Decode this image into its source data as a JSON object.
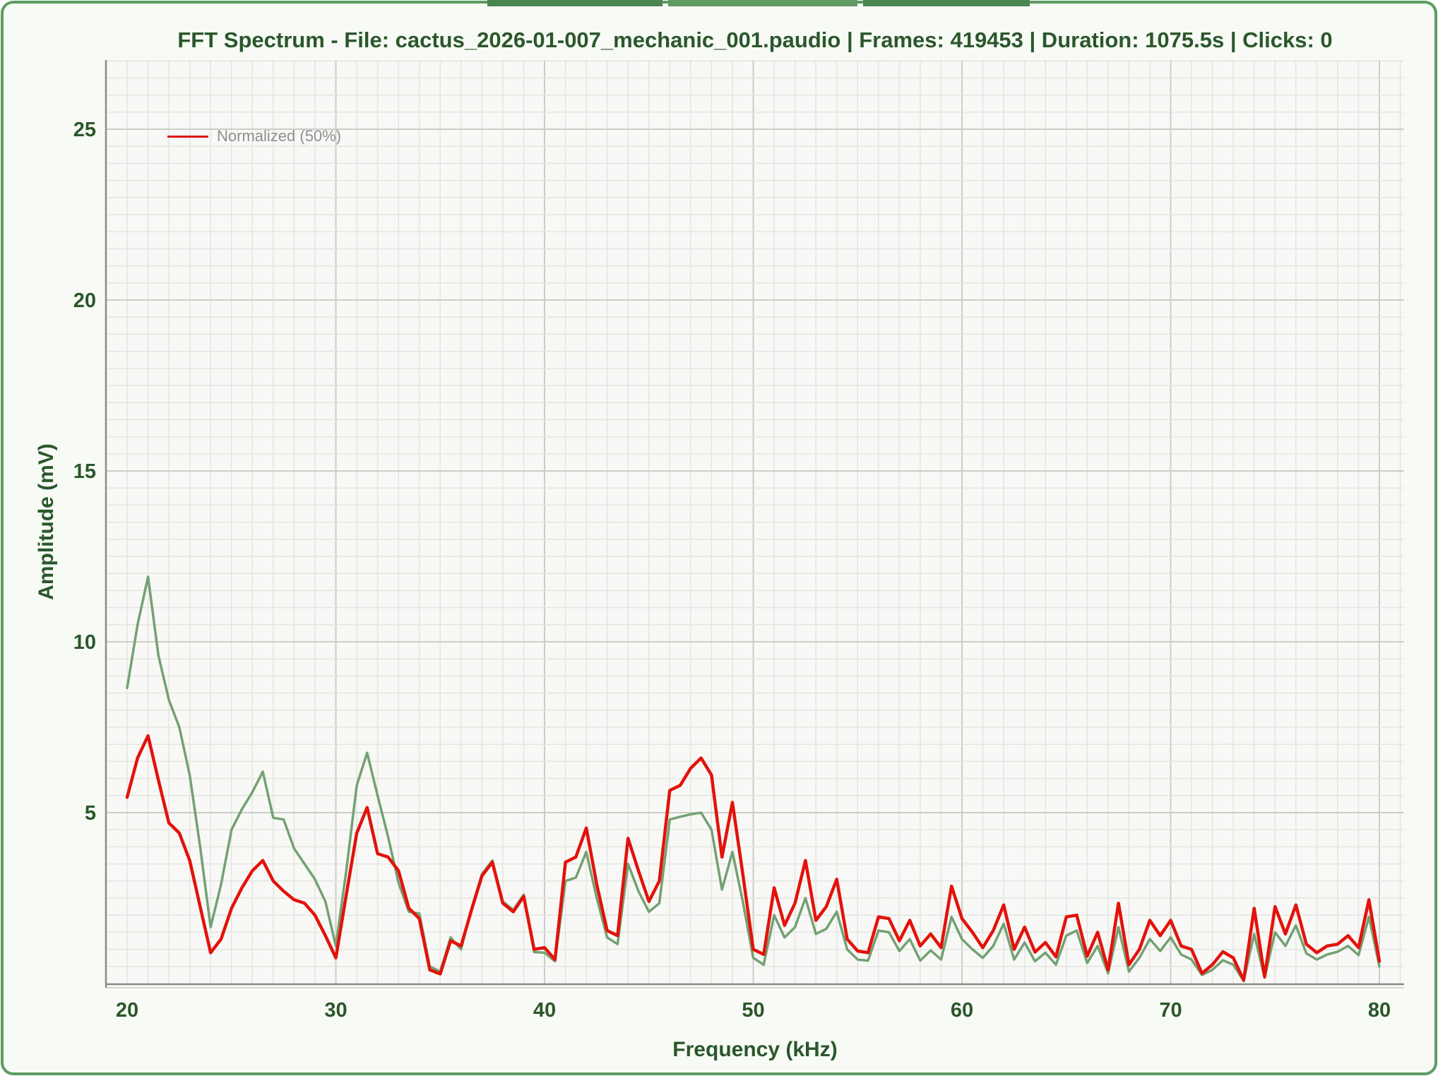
{
  "colors": {
    "page_bg": "#ffffff",
    "card_bg": "#f7faf5",
    "plot_bg": "#f8f9f6",
    "card_border": "#5c9c61",
    "accent_segment": "#4c8450",
    "accent_segment_mid": "#629a64",
    "title_text": "#2b572b",
    "grid_minor": "#e4e4e1",
    "grid_major": "#cccdc8",
    "axis_line": "#8a8a8a",
    "legend_text": "#8f8f8f",
    "series_red": "#e3120b",
    "series_green": "#74a173"
  },
  "chart_data": {
    "type": "line",
    "title": "FFT Spectrum - File: cactus_2026-01-007_mechanic_001.paudio | Frames: 419453 | Duration: 1075.5s | Clicks: 0",
    "xlabel": "Frequency (kHz)",
    "ylabel": "Amplitude (mV)",
    "x_ticks": [
      20,
      30,
      40,
      50,
      60,
      70,
      80
    ],
    "y_ticks": [
      5,
      10,
      15,
      20,
      25
    ],
    "xlim": [
      20,
      81.3
    ],
    "ylim": [
      0,
      27.05
    ],
    "x_minor_step": 1,
    "y_minor_step": 0.5,
    "grid": true,
    "legend_position": "top-left",
    "x_start": 20,
    "x_step": 0.5,
    "series": [
      {
        "name": "Normalized (50%)",
        "color": "#e3120b",
        "in_legend": true,
        "values": [
          5.45,
          6.6,
          7.25,
          5.95,
          4.7,
          4.4,
          3.6,
          2.25,
          0.9,
          1.3,
          2.2,
          2.8,
          3.3,
          3.6,
          3.0,
          2.7,
          2.45,
          2.35,
          2.0,
          1.4,
          0.75,
          2.6,
          4.4,
          5.15,
          3.8,
          3.7,
          3.3,
          2.2,
          1.9,
          0.4,
          0.28,
          1.25,
          1.1,
          2.15,
          3.15,
          3.55,
          2.35,
          2.1,
          2.55,
          1.0,
          1.05,
          0.7,
          3.55,
          3.7,
          4.55,
          2.9,
          1.55,
          1.4,
          4.25,
          3.3,
          2.4,
          3.0,
          5.65,
          5.8,
          6.3,
          6.6,
          6.1,
          3.7,
          5.3,
          3.2,
          1.0,
          0.85,
          2.8,
          1.7,
          2.35,
          3.6,
          1.85,
          2.25,
          3.05,
          1.3,
          0.95,
          0.9,
          1.95,
          1.9,
          1.25,
          1.85,
          1.1,
          1.45,
          1.05,
          2.85,
          1.9,
          1.5,
          1.05,
          1.55,
          2.3,
          1.0,
          1.65,
          0.92,
          1.2,
          0.78,
          1.95,
          2.0,
          0.8,
          1.5,
          0.4,
          2.35,
          0.55,
          1.0,
          1.85,
          1.4,
          1.85,
          1.1,
          1.0,
          0.3,
          0.55,
          0.93,
          0.75,
          0.1,
          2.2,
          0.2,
          2.25,
          1.45,
          2.3,
          1.15,
          0.9,
          1.1,
          1.15,
          1.4,
          1.05,
          2.45,
          0.65
        ]
      },
      {
        "name": "",
        "color": "#74a173",
        "in_legend": false,
        "values": [
          8.65,
          10.5,
          11.9,
          9.6,
          8.3,
          7.5,
          6.1,
          4.0,
          1.65,
          2.9,
          4.5,
          5.1,
          5.6,
          6.2,
          4.85,
          4.8,
          3.95,
          3.5,
          3.05,
          2.4,
          1.1,
          3.3,
          5.8,
          6.75,
          5.5,
          4.3,
          2.95,
          2.1,
          2.05,
          0.5,
          0.35,
          1.35,
          1.0,
          2.2,
          3.2,
          3.6,
          2.4,
          2.15,
          2.6,
          0.92,
          0.9,
          0.65,
          3.0,
          3.1,
          3.85,
          2.5,
          1.35,
          1.15,
          3.5,
          2.7,
          2.1,
          2.35,
          4.8,
          4.88,
          4.95,
          5.0,
          4.5,
          2.75,
          3.85,
          2.4,
          0.75,
          0.55,
          2.0,
          1.35,
          1.65,
          2.5,
          1.45,
          1.6,
          2.1,
          1.0,
          0.7,
          0.67,
          1.55,
          1.5,
          0.95,
          1.3,
          0.67,
          0.97,
          0.7,
          1.95,
          1.3,
          1.0,
          0.75,
          1.1,
          1.75,
          0.7,
          1.2,
          0.65,
          0.9,
          0.55,
          1.4,
          1.55,
          0.6,
          1.1,
          0.3,
          1.65,
          0.35,
          0.75,
          1.3,
          0.95,
          1.35,
          0.85,
          0.7,
          0.25,
          0.4,
          0.68,
          0.55,
          0.07,
          1.45,
          0.17,
          1.5,
          1.1,
          1.7,
          0.88,
          0.7,
          0.85,
          0.93,
          1.1,
          0.83,
          1.95,
          0.5
        ]
      }
    ]
  }
}
